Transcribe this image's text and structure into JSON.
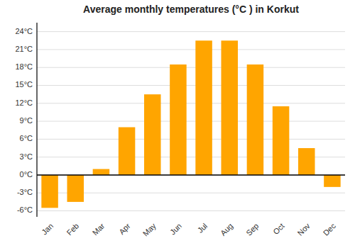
{
  "chart_data": {
    "type": "bar",
    "title": "Average monthly temperatures (°C ) in Korkut",
    "categories": [
      "Jan",
      "Feb",
      "Mar",
      "Apr",
      "May",
      "Jun",
      "Jul",
      "Aug",
      "Sep",
      "Oct",
      "Nov",
      "Dec"
    ],
    "values": [
      -5.5,
      -4.5,
      1.0,
      8.0,
      13.5,
      18.5,
      22.5,
      22.5,
      18.5,
      11.5,
      4.5,
      -2.0
    ],
    "color": "#FFA500",
    "ylim": [
      -7,
      25.5
    ],
    "yticks": [
      {
        "value": -6,
        "label": "-6°C"
      },
      {
        "value": -3,
        "label": "-3°C"
      },
      {
        "value": 0,
        "label": "0°C"
      },
      {
        "value": 3,
        "label": "3°C"
      },
      {
        "value": 6,
        "label": "6°C"
      },
      {
        "value": 9,
        "label": "9°C"
      },
      {
        "value": 12,
        "label": "12°C"
      },
      {
        "value": 15,
        "label": "15°C"
      },
      {
        "value": 18,
        "label": "18°C"
      },
      {
        "value": 21,
        "label": "21°C"
      },
      {
        "value": 24,
        "label": "24°C"
      }
    ],
    "grid": true
  }
}
